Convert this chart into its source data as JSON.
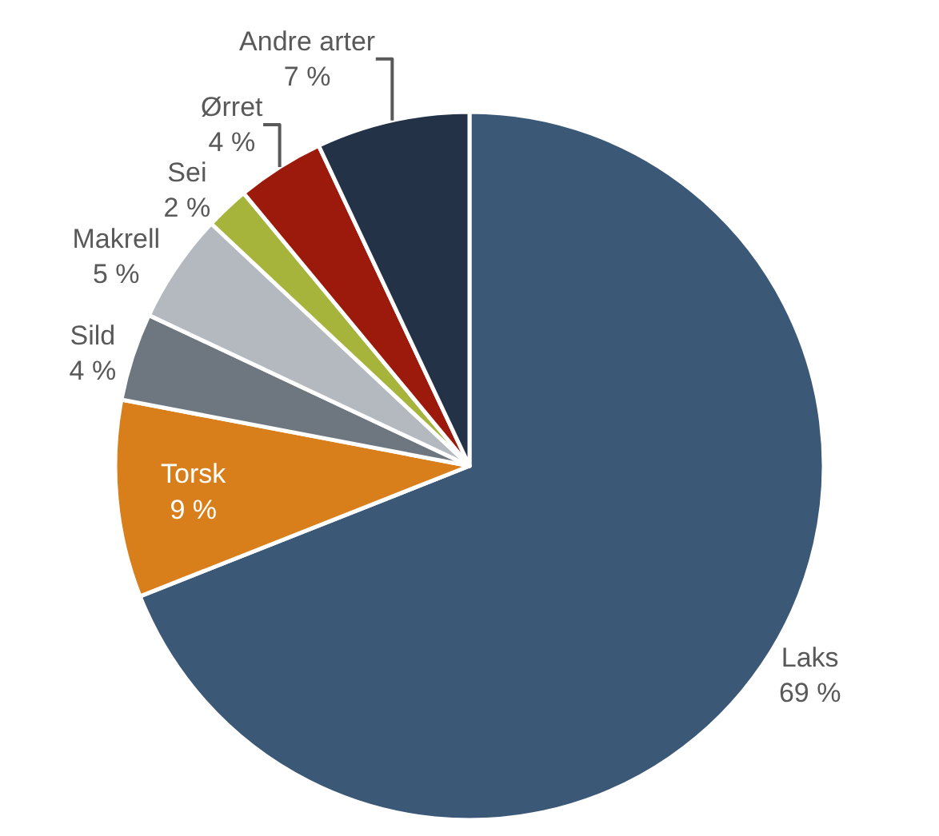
{
  "chart_data": {
    "type": "pie",
    "categories": [
      "Laks",
      "Torsk",
      "Sild",
      "Makrell",
      "Sei",
      "Ørret",
      "Andre arter"
    ],
    "values": [
      69,
      9,
      4,
      5,
      2,
      4,
      7
    ],
    "value_labels": [
      "69 %",
      "9 %",
      "4 %",
      "5 %",
      "2 %",
      "4 %",
      "7 %"
    ],
    "colors": [
      "#3b5876",
      "#d87f1c",
      "#6e7780",
      "#b4b9bf",
      "#a7b43c",
      "#9b1a0c",
      "#243247"
    ]
  }
}
